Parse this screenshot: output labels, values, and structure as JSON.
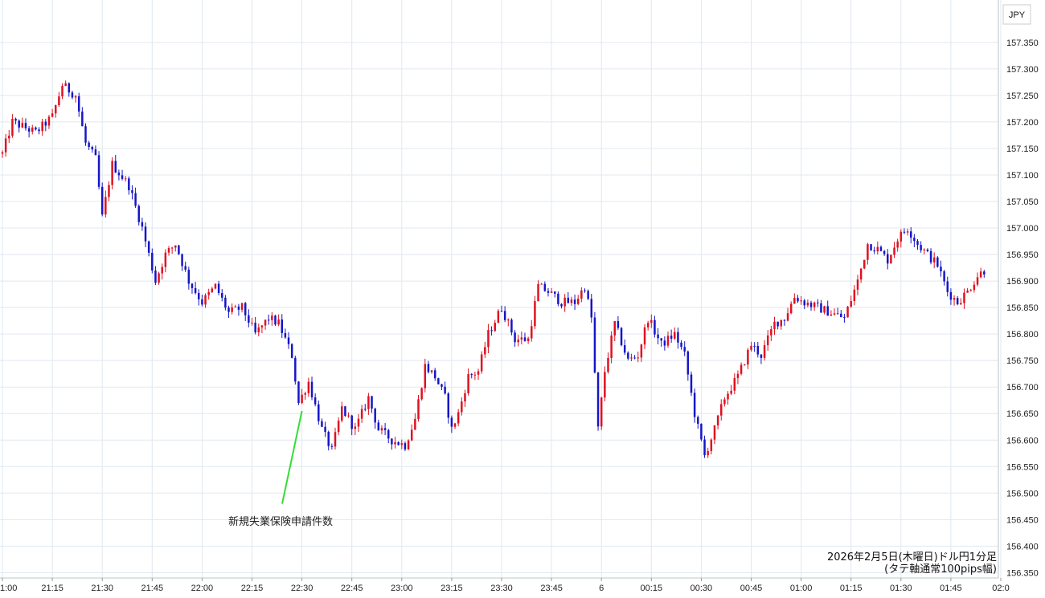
{
  "chart_data": {
    "type": "candlestick",
    "currency": "JPY",
    "annotation": "新規失業保険申請件数",
    "caption_line1": "2026年2月5日(木曜日)ドル円1分足",
    "caption_line2": "(タテ軸通常100pips幅)",
    "ylim": [
      156.34,
      157.43
    ],
    "y_ticks": [
      "157.350",
      "157.300",
      "157.250",
      "157.200",
      "157.150",
      "157.100",
      "157.050",
      "157.000",
      "156.950",
      "156.900",
      "156.850",
      "156.800",
      "156.750",
      "156.700",
      "156.650",
      "156.600",
      "156.550",
      "156.500",
      "156.450",
      "156.400",
      "156.350"
    ],
    "x_ticks": [
      "1:00",
      "21:15",
      "21:30",
      "21:45",
      "22:00",
      "22:15",
      "22:30",
      "22:45",
      "23:00",
      "23:15",
      "23:30",
      "23:45",
      "6",
      "00:15",
      "00:30",
      "00:45",
      "01:00",
      "01:15",
      "01:30",
      "01:45",
      "02:0"
    ],
    "grid": true,
    "up_color": "#e01020",
    "down_color": "#1515c8",
    "grid_color": "#e0e8f0",
    "annotation_line_color": "#33dd33",
    "anchors": [
      [
        0,
        157.14
      ],
      [
        3,
        157.2
      ],
      [
        10,
        157.18
      ],
      [
        15,
        157.21
      ],
      [
        18,
        157.27
      ],
      [
        22,
        157.25
      ],
      [
        25,
        157.16
      ],
      [
        28,
        157.13
      ],
      [
        30,
        157.02
      ],
      [
        33,
        157.12
      ],
      [
        38,
        157.08
      ],
      [
        42,
        157.0
      ],
      [
        46,
        156.9
      ],
      [
        49,
        156.95
      ],
      [
        52,
        156.97
      ],
      [
        56,
        156.9
      ],
      [
        60,
        156.86
      ],
      [
        64,
        156.89
      ],
      [
        68,
        156.84
      ],
      [
        72,
        156.85
      ],
      [
        76,
        156.8
      ],
      [
        80,
        156.83
      ],
      [
        83,
        156.82
      ],
      [
        87,
        156.76
      ],
      [
        89,
        156.67
      ],
      [
        92,
        156.71
      ],
      [
        96,
        156.62
      ],
      [
        99,
        156.58
      ],
      [
        102,
        156.66
      ],
      [
        106,
        156.62
      ],
      [
        110,
        156.68
      ],
      [
        113,
        156.62
      ],
      [
        117,
        156.6
      ],
      [
        121,
        156.59
      ],
      [
        124,
        156.64
      ],
      [
        127,
        156.74
      ],
      [
        130,
        156.72
      ],
      [
        133,
        156.68
      ],
      [
        135,
        156.62
      ],
      [
        137,
        156.65
      ],
      [
        140,
        156.72
      ],
      [
        143,
        156.73
      ],
      [
        146,
        156.8
      ],
      [
        150,
        156.85
      ],
      [
        154,
        156.79
      ],
      [
        158,
        156.79
      ],
      [
        161,
        156.89
      ],
      [
        164,
        156.88
      ],
      [
        168,
        156.86
      ],
      [
        172,
        156.86
      ],
      [
        175,
        156.89
      ],
      [
        177,
        156.83
      ],
      [
        179,
        156.62
      ],
      [
        181,
        156.73
      ],
      [
        184,
        156.82
      ],
      [
        188,
        156.75
      ],
      [
        191,
        156.76
      ],
      [
        194,
        156.83
      ],
      [
        198,
        156.78
      ],
      [
        202,
        156.8
      ],
      [
        205,
        156.76
      ],
      [
        208,
        156.65
      ],
      [
        211,
        156.57
      ],
      [
        214,
        156.62
      ],
      [
        217,
        156.68
      ],
      [
        221,
        156.72
      ],
      [
        225,
        156.78
      ],
      [
        228,
        156.76
      ],
      [
        232,
        156.82
      ],
      [
        235,
        156.83
      ],
      [
        238,
        156.87
      ],
      [
        241,
        156.86
      ],
      [
        245,
        156.85
      ],
      [
        249,
        156.84
      ],
      [
        253,
        156.83
      ],
      [
        257,
        156.9
      ],
      [
        260,
        156.97
      ],
      [
        263,
        156.96
      ],
      [
        266,
        156.94
      ],
      [
        269,
        156.98
      ],
      [
        272,
        157.0
      ],
      [
        275,
        156.97
      ],
      [
        278,
        156.95
      ],
      [
        281,
        156.93
      ],
      [
        284,
        156.88
      ],
      [
        287,
        156.86
      ],
      [
        290,
        156.88
      ],
      [
        293,
        156.91
      ],
      [
        295,
        156.92
      ]
    ]
  }
}
